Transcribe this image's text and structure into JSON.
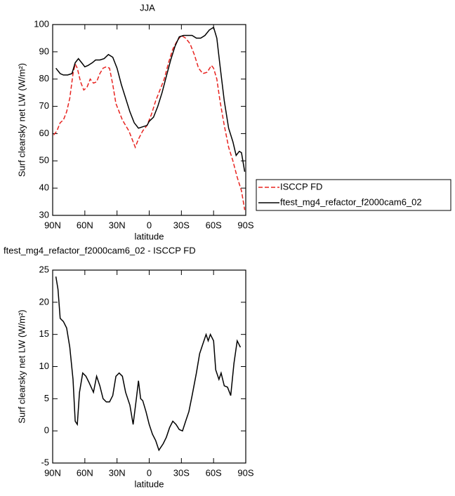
{
  "chart_data": [
    {
      "type": "line",
      "title": "JJA",
      "xlabel": "latitude",
      "ylabel": "Surf clearsky net LW (W/m²)",
      "xlim": [
        90,
        -90
      ],
      "xticks": [
        {
          "value": 90,
          "label": "90N"
        },
        {
          "value": 60,
          "label": "60N"
        },
        {
          "value": 30,
          "label": "30N"
        },
        0,
        {
          "value": -30,
          "label": "30S"
        },
        {
          "value": -60,
          "label": "60S"
        },
        {
          "value": -90,
          "label": "90S"
        }
      ],
      "ylim": [
        30,
        100
      ],
      "yticks": [
        30,
        40,
        50,
        60,
        70,
        80,
        90,
        100
      ],
      "legend": "right",
      "series": [
        {
          "name": "ISCCP FD",
          "color": "#e8231f",
          "dashed": true,
          "x": [
            89,
            86,
            83,
            80,
            77,
            74,
            71,
            69,
            67,
            64,
            61,
            58,
            55,
            52,
            49,
            46,
            43,
            40,
            37,
            34,
            31,
            28,
            25,
            22,
            19,
            16,
            13,
            10,
            6,
            2,
            -2,
            -6,
            -10,
            -14,
            -18,
            -22,
            -26,
            -30,
            -34,
            -38,
            -42,
            -46,
            -50,
            -54,
            -58,
            -60,
            -63,
            -66,
            -70,
            -74,
            -78,
            -82,
            -86,
            -89
          ],
          "values": [
            59.5,
            61,
            64,
            65,
            68,
            73,
            82,
            85.5,
            84,
            79,
            76,
            77,
            80,
            78.5,
            79,
            82,
            84,
            84.5,
            84,
            78,
            71,
            68,
            65,
            63,
            61,
            58,
            55,
            58,
            61,
            63,
            67,
            72,
            76,
            80,
            86,
            91,
            94,
            96,
            95,
            93,
            89,
            84,
            82,
            82.5,
            85,
            84,
            80,
            72,
            63,
            55,
            50,
            44,
            39,
            32
          ]
        },
        {
          "name": "ftest_mg4_refactor_f2000cam6_02",
          "color": "#000000",
          "dashed": false,
          "x": [
            87,
            83,
            80,
            76,
            72,
            69,
            66,
            63,
            60,
            57,
            53,
            50,
            46,
            42,
            38,
            34,
            30,
            26,
            22,
            18,
            14,
            10,
            6,
            2,
            0,
            -4,
            -8,
            -12,
            -16,
            -20,
            -24,
            -28,
            -32,
            -36,
            -40,
            -44,
            -48,
            -52,
            -56,
            -60,
            -63,
            -66,
            -70,
            -74,
            -78,
            -81,
            -84,
            -86,
            -89
          ],
          "values": [
            84,
            82,
            81.5,
            81.5,
            82,
            86,
            87.5,
            86,
            84.5,
            85,
            86,
            87,
            87,
            87.5,
            89,
            88,
            84,
            78,
            73,
            68,
            64,
            62,
            62.5,
            63,
            64.5,
            66,
            70,
            75,
            81,
            87,
            92,
            95.5,
            96,
            96,
            96,
            95,
            95,
            96,
            98,
            99,
            95,
            85,
            72,
            62,
            57,
            52,
            53.5,
            53,
            46
          ]
        }
      ]
    },
    {
      "type": "line",
      "title": "ftest_mg4_refactor_f2000cam6_02 - ISCCP FD",
      "xlabel": "latitude",
      "ylabel": "Surf clearsky net LW (W/m²)",
      "xlim": [
        90,
        -90
      ],
      "xticks": [
        {
          "value": 90,
          "label": "90N"
        },
        {
          "value": 60,
          "label": "60N"
        },
        {
          "value": 30,
          "label": "30N"
        },
        0,
        {
          "value": -30,
          "label": "30S"
        },
        {
          "value": -60,
          "label": "60S"
        },
        {
          "value": -90,
          "label": "90S"
        }
      ],
      "ylim": [
        -5,
        25
      ],
      "yticks": [
        -5,
        0,
        5,
        10,
        15,
        20,
        25
      ],
      "series": [
        {
          "color": "#000000",
          "dashed": false,
          "x": [
            87,
            85,
            83,
            80,
            77,
            74,
            71,
            69,
            67,
            65,
            62,
            59,
            56,
            52,
            49,
            46,
            43,
            40,
            37,
            34,
            31,
            28,
            25,
            22,
            18,
            15,
            12,
            10,
            8,
            6,
            3,
            0,
            -3,
            -6,
            -9,
            -13,
            -16,
            -19,
            -22,
            -25,
            -28,
            -31,
            -34,
            -37,
            -40,
            -44,
            -47,
            -50,
            -53,
            -55,
            -57,
            -60,
            -62,
            -65,
            -67,
            -70,
            -73,
            -76,
            -79,
            -82,
            -85
          ],
          "values": [
            24,
            22,
            17.5,
            17,
            16,
            13,
            8,
            1.5,
            1,
            6,
            9,
            8.5,
            7.5,
            6,
            8.5,
            7,
            5,
            4.5,
            4.5,
            5.5,
            8.5,
            9,
            8.5,
            6,
            4,
            1,
            5,
            7.8,
            5,
            4.7,
            3,
            1,
            -0.5,
            -1.5,
            -3,
            -2,
            -1,
            0.5,
            1.5,
            1,
            0.2,
            0,
            1.5,
            3,
            5.5,
            9,
            12,
            13.5,
            15,
            14,
            15,
            14,
            9.5,
            8,
            9,
            7,
            6.8,
            5.5,
            10.5,
            14,
            13
          ]
        }
      ]
    }
  ]
}
